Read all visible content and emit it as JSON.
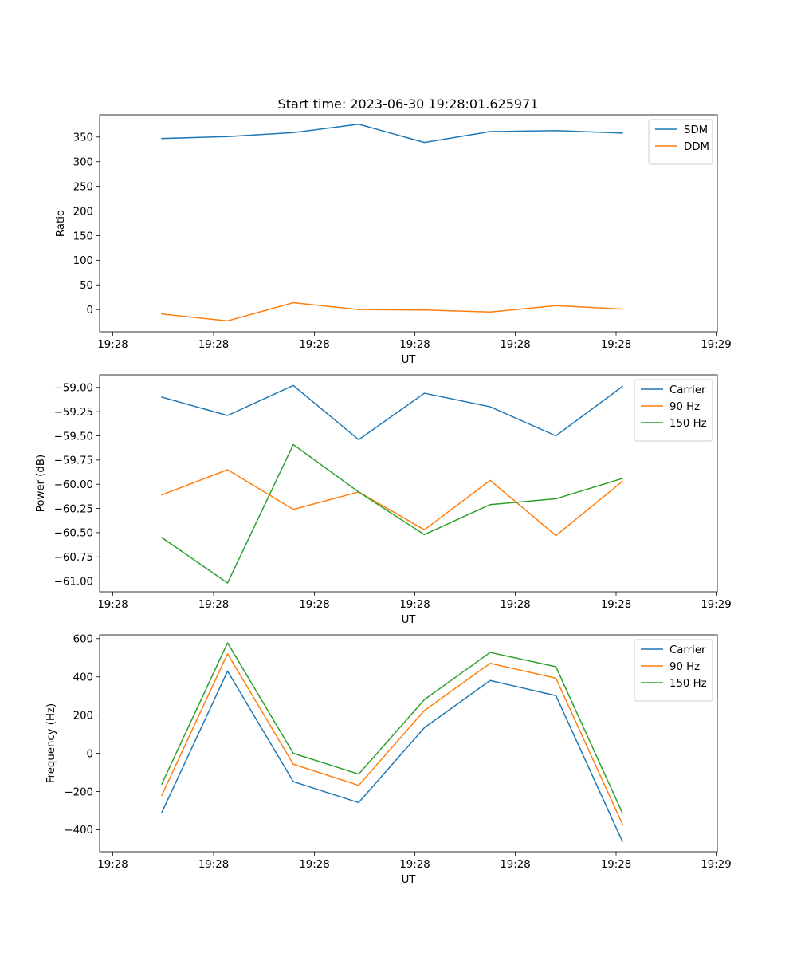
{
  "title": "Start time: 2023-06-30 19:28:01.625971",
  "colors": {
    "blue": "#1f77b4",
    "orange": "#ff7f0e",
    "green": "#2ca02c"
  },
  "chart_data": [
    {
      "type": "line",
      "xlabel": "UT",
      "ylabel": "Ratio",
      "x_ticks": [
        "19:28",
        "19:28",
        "19:28",
        "19:28",
        "19:28",
        "19:28",
        "19:29"
      ],
      "y_ticks": [
        0,
        50,
        100,
        150,
        200,
        250,
        300,
        350
      ],
      "y_tick_labels": [
        "0",
        "50",
        "100",
        "150",
        "200",
        "250",
        "300",
        "350"
      ],
      "ylim": [
        -45,
        395
      ],
      "legend": "top-right",
      "grid": false,
      "series": [
        {
          "name": "SDM",
          "color": "#1f77b4",
          "values": [
            347,
            351,
            359,
            376,
            339,
            361,
            363,
            358
          ]
        },
        {
          "name": "DDM",
          "color": "#ff7f0e",
          "values": [
            -9,
            -23,
            14,
            0,
            -1,
            -5,
            8,
            1
          ]
        }
      ]
    },
    {
      "type": "line",
      "xlabel": "UT",
      "ylabel": "Power (dB)",
      "x_ticks": [
        "19:28",
        "19:28",
        "19:28",
        "19:28",
        "19:28",
        "19:28",
        "19:29"
      ],
      "y_ticks": [
        -61.0,
        -60.75,
        -60.5,
        -60.25,
        -60.0,
        -59.75,
        -59.5,
        -59.25,
        -59.0
      ],
      "y_tick_labels": [
        "−61.00",
        "−60.75",
        "−60.50",
        "−60.25",
        "−60.00",
        "−59.75",
        "−59.50",
        "−59.25",
        "−59.00"
      ],
      "ylim": [
        -61.11,
        -58.87
      ],
      "legend": "top-right",
      "grid": false,
      "series": [
        {
          "name": "Carrier",
          "color": "#1f77b4",
          "values": [
            -59.1,
            -59.29,
            -58.98,
            -59.54,
            -59.06,
            -59.2,
            -59.5,
            -58.99
          ]
        },
        {
          "name": "90 Hz",
          "color": "#ff7f0e",
          "values": [
            -60.11,
            -59.85,
            -60.26,
            -60.08,
            -60.47,
            -59.96,
            -60.53,
            -59.97
          ]
        },
        {
          "name": "150 Hz",
          "color": "#2ca02c",
          "values": [
            -60.55,
            -61.02,
            -59.59,
            -60.08,
            -60.52,
            -60.21,
            -60.15,
            -59.94
          ]
        }
      ]
    },
    {
      "type": "line",
      "xlabel": "UT",
      "ylabel": "Frequency (Hz)",
      "x_ticks": [
        "19:28",
        "19:28",
        "19:28",
        "19:28",
        "19:28",
        "19:28",
        "19:29"
      ],
      "y_ticks": [
        -400,
        -200,
        0,
        200,
        400,
        600
      ],
      "y_tick_labels": [
        "−400",
        "−200",
        "0",
        "200",
        "400",
        "600"
      ],
      "ylim": [
        -515,
        620
      ],
      "legend": "top-right",
      "grid": false,
      "series": [
        {
          "name": "Carrier",
          "color": "#1f77b4",
          "values": [
            -310,
            430,
            -148,
            -258,
            134,
            381,
            302,
            -462
          ]
        },
        {
          "name": "90 Hz",
          "color": "#ff7f0e",
          "values": [
            -220,
            521,
            -57,
            -168,
            224,
            471,
            393,
            -371
          ]
        },
        {
          "name": "150 Hz",
          "color": "#2ca02c",
          "values": [
            -161,
            578,
            0,
            -109,
            281,
            528,
            453,
            -313
          ]
        }
      ]
    }
  ]
}
